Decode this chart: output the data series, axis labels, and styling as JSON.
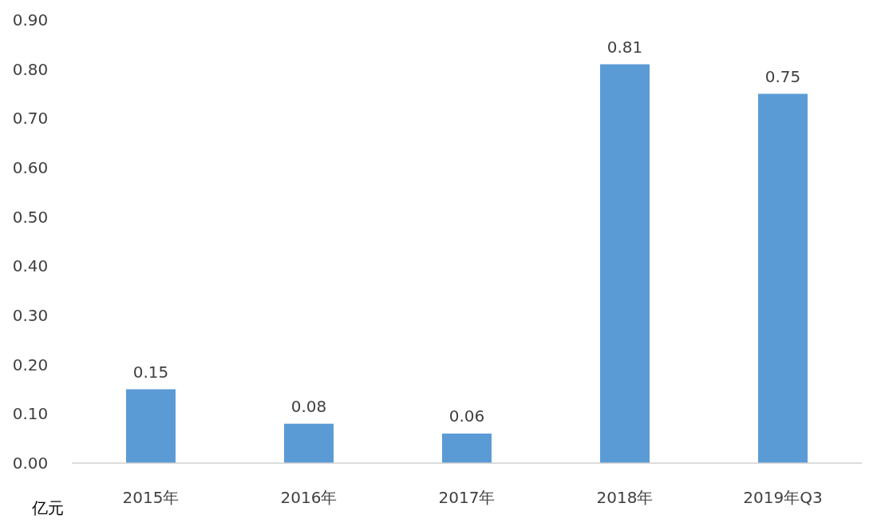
{
  "chart_data": {
    "type": "bar",
    "ylabel": "亿元",
    "categories": [
      "2015年",
      "2016年",
      "2017年",
      "2018年",
      "2019年Q3"
    ],
    "values": [
      0.15,
      0.08,
      0.06,
      0.81,
      0.75
    ],
    "color": "#5b9bd5",
    "data_labels": true,
    "ylim": [
      0,
      0.9
    ],
    "yticks": [
      {
        "value": 0,
        "label": "0.00"
      },
      {
        "value": 0.1,
        "label": "0.10"
      },
      {
        "value": 0.2,
        "label": "0.20"
      },
      {
        "value": 0.3,
        "label": "0.30"
      },
      {
        "value": 0.4,
        "label": "0.40"
      },
      {
        "value": 0.5,
        "label": "0.50"
      },
      {
        "value": 0.6,
        "label": "0.60"
      },
      {
        "value": 0.7,
        "label": "0.70"
      },
      {
        "value": 0.8,
        "label": "0.80"
      },
      {
        "value": 0.9,
        "label": "0.90"
      }
    ]
  }
}
